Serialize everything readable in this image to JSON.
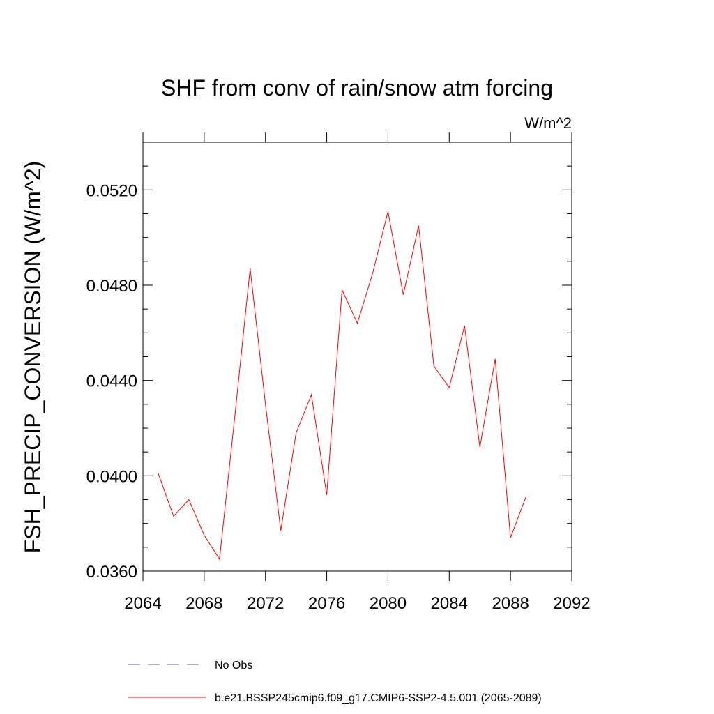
{
  "chart_data": {
    "type": "line",
    "title": "SHF from conv of rain/snow atm forcing",
    "units_label": "W/m^2",
    "ylabel": "FSH_PRECIP_CONVERSION  (W/m^2)",
    "xlabel": "",
    "xlim": [
      2064,
      2092
    ],
    "ylim": [
      0.036,
      0.054
    ],
    "x_ticks": [
      2064,
      2068,
      2072,
      2076,
      2080,
      2084,
      2088,
      2092
    ],
    "x_tick_labels": [
      "2064",
      "2068",
      "2072",
      "2076",
      "2080",
      "2084",
      "2088",
      "2092"
    ],
    "y_ticks": [
      0.036,
      0.04,
      0.044,
      0.048,
      0.052
    ],
    "y_tick_labels": [
      "0.0360",
      "0.0400",
      "0.0440",
      "0.0480",
      "0.0520"
    ],
    "grid": false,
    "legend_placement": "bottom",
    "series": [
      {
        "name": "b.e21.BSSP245cmip6.f09_g17.CMIP6-SSP2-4.5.001 (2065-2089)",
        "color": "#ff0000",
        "dash": "solid",
        "x": [
          2065,
          2066,
          2067,
          2068,
          2069,
          2070,
          2071,
          2072,
          2073,
          2074,
          2075,
          2076,
          2077,
          2078,
          2079,
          2080,
          2081,
          2082,
          2083,
          2084,
          2085,
          2086,
          2087,
          2088,
          2089
        ],
        "y": [
          0.0401,
          0.0383,
          0.039,
          0.0375,
          0.0365,
          0.0425,
          0.0487,
          0.043,
          0.0377,
          0.0418,
          0.0434,
          0.0392,
          0.0478,
          0.0464,
          0.0485,
          0.0511,
          0.0476,
          0.0505,
          0.0446,
          0.0437,
          0.0463,
          0.0412,
          0.0449,
          0.0374,
          0.0391
        ]
      },
      {
        "name": "No Obs",
        "color": "#6a5acd",
        "dash": "dashed",
        "x": [],
        "y": []
      }
    ]
  }
}
